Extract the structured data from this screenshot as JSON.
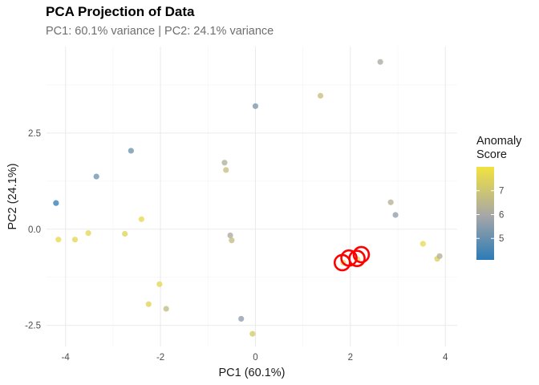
{
  "chart_data": {
    "type": "scatter",
    "title": "PCA Projection of Data",
    "subtitle": "PC1: 60.1% variance | PC2: 24.1% variance",
    "xlabel": "PC1 (60.1%)",
    "ylabel": "PC2 (24.1%)",
    "xlim": [
      -4.4,
      4.25
    ],
    "ylim": [
      -3.05,
      4.75
    ],
    "x_ticks": [
      -4,
      -2,
      0,
      2,
      4
    ],
    "x_tick_labels": [
      "-4",
      "-2",
      "0",
      "2",
      "4"
    ],
    "y_ticks": [
      -2.5,
      0,
      2.5
    ],
    "y_tick_labels": [
      "-2.5",
      "0.0",
      "2.5"
    ],
    "grid": true,
    "legend": {
      "title_lines": [
        "Anomaly",
        "Score"
      ],
      "placement": "right",
      "range": [
        4.1,
        8.0
      ],
      "ticks": [
        5,
        6,
        7
      ],
      "tick_labels": [
        "5",
        "6",
        "7"
      ],
      "colors": {
        "low": "#2c7bb6",
        "mid": "#a7a7a7",
        "high": "#f2e33f"
      }
    },
    "highlight_color": "#ff0000",
    "points": [
      {
        "x": -4.2,
        "y": 0.68,
        "score": 4.2
      },
      {
        "x": -4.15,
        "y": -0.27,
        "score": 7.7
      },
      {
        "x": -3.8,
        "y": -0.27,
        "score": 7.6
      },
      {
        "x": -3.52,
        "y": -0.1,
        "score": 7.6
      },
      {
        "x": -3.35,
        "y": 1.37,
        "score": 5.1
      },
      {
        "x": -2.75,
        "y": -0.12,
        "score": 7.5
      },
      {
        "x": -2.62,
        "y": 2.04,
        "score": 5.1
      },
      {
        "x": -2.4,
        "y": 0.26,
        "score": 7.7
      },
      {
        "x": -2.25,
        "y": -1.95,
        "score": 7.5
      },
      {
        "x": -2.02,
        "y": -1.43,
        "score": 7.6
      },
      {
        "x": -1.88,
        "y": -2.07,
        "score": 6.7
      },
      {
        "x": -0.65,
        "y": 1.73,
        "score": 6.2
      },
      {
        "x": -0.62,
        "y": 1.54,
        "score": 6.8
      },
      {
        "x": -0.53,
        "y": -0.16,
        "score": 6.1
      },
      {
        "x": -0.5,
        "y": -0.29,
        "score": 6.7
      },
      {
        "x": -0.3,
        "y": -2.33,
        "score": 5.6
      },
      {
        "x": -0.06,
        "y": -2.72,
        "score": 7.2
      },
      {
        "x": 0.0,
        "y": 3.2,
        "score": 5.3
      },
      {
        "x": 1.37,
        "y": 3.47,
        "score": 6.8
      },
      {
        "x": 1.85,
        "y": -0.87,
        "score": 7.5
      },
      {
        "x": 2.15,
        "y": -0.78,
        "score": 7.5
      },
      {
        "x": 2.63,
        "y": 4.35,
        "score": 6.1
      },
      {
        "x": 2.85,
        "y": 0.7,
        "score": 6.3
      },
      {
        "x": 2.95,
        "y": 0.37,
        "score": 5.6
      },
      {
        "x": 3.53,
        "y": -0.38,
        "score": 7.7
      },
      {
        "x": 3.83,
        "y": -0.77,
        "score": 7.4
      },
      {
        "x": 3.88,
        "y": -0.7,
        "score": 6.3
      }
    ],
    "highlighted": [
      {
        "x": 1.83,
        "y": -0.87
      },
      {
        "x": 1.97,
        "y": -0.75
      },
      {
        "x": 2.14,
        "y": -0.76
      },
      {
        "x": 2.23,
        "y": -0.66
      }
    ]
  }
}
